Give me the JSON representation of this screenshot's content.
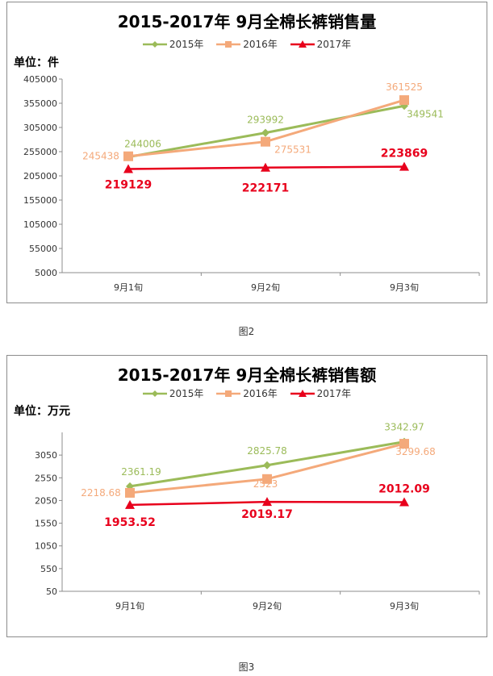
{
  "chart_data": [
    {
      "type": "line",
      "title": "2015-2017年 9月全棉长裤销售量",
      "unit_label": "单位：件",
      "categories": [
        "9月1旬",
        "9月2旬",
        "9月3旬"
      ],
      "y_ticks": [
        "405000",
        "355000",
        "305000",
        "255000",
        "205000",
        "155000",
        "105000",
        "55000",
        "5000"
      ],
      "ylim": [
        5000,
        405000
      ],
      "grid": false,
      "legend_position": "top",
      "series": [
        {
          "name": "2015年",
          "values": [
            244006,
            293992,
            349541
          ],
          "labels": [
            "244006",
            "293992",
            "349541"
          ],
          "color": "#9bbb59",
          "marker": "diamond"
        },
        {
          "name": "2016年",
          "values": [
            245438,
            275531,
            361525
          ],
          "labels": [
            "245438",
            "275531",
            "361525"
          ],
          "color": "#f4a97a",
          "marker": "square"
        },
        {
          "name": "2017年",
          "values": [
            219129,
            222171,
            223869
          ],
          "labels": [
            "219129",
            "222171",
            "223869"
          ],
          "color": "#e8001c",
          "marker": "triangle"
        }
      ],
      "caption": "图2"
    },
    {
      "type": "line",
      "title": "2015-2017年 9月全棉长裤销售额",
      "unit_label": "单位：万元",
      "categories": [
        "9月1旬",
        "9月2旬",
        "9月3旬"
      ],
      "y_ticks": [
        "3050",
        "2550",
        "2050",
        "1550",
        "1050",
        "550",
        "50"
      ],
      "ylim": [
        50,
        3550
      ],
      "grid": false,
      "legend_position": "top",
      "series": [
        {
          "name": "2015年",
          "values": [
            2361.19,
            2825.78,
            3342.97
          ],
          "labels": [
            "2361.19",
            "2825.78",
            "3342.97"
          ],
          "color": "#9bbb59",
          "marker": "diamond"
        },
        {
          "name": "2016年",
          "values": [
            2218.68,
            2523,
            3299.68
          ],
          "labels": [
            "2218.68",
            "2523",
            "3299.68"
          ],
          "color": "#f4a97a",
          "marker": "square"
        },
        {
          "name": "2017年",
          "values": [
            1953.52,
            2019.17,
            2012.09
          ],
          "labels": [
            "1953.52",
            "2019.17",
            "2012.09"
          ],
          "color": "#e8001c",
          "marker": "triangle"
        }
      ],
      "caption": "图3"
    }
  ]
}
